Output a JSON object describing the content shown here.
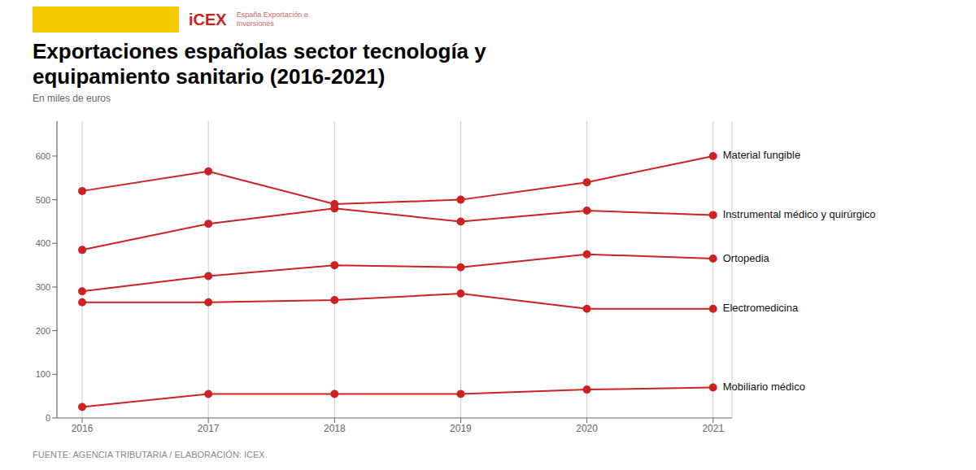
{
  "chart_data": {
    "type": "line",
    "title": "Exportaciones españolas sector tecnología y equipamiento sanitario (2016-2021)",
    "subtitle": "En miles de euros",
    "annotations": [
      "FUENTE: AGENCIA TRIBUTARIA / ELABORACIÓN: ICEX.",
      "iCEX",
      "España Exportación e Inversiones"
    ],
    "x": [
      2016,
      2017,
      2018,
      2019,
      2020,
      2021
    ],
    "xlim": [
      2015.8,
      2021.15
    ],
    "xticks": [
      2016,
      2017,
      2018,
      2019,
      2020,
      2021
    ],
    "ylim": [
      0,
      680
    ],
    "yticks": [
      0,
      100,
      200,
      300,
      400,
      500,
      600
    ],
    "grid": true,
    "series": [
      {
        "name": "Material fungible",
        "color": "#cc2222",
        "values": [
          520,
          565,
          490,
          500,
          540,
          600
        ]
      },
      {
        "name": "Instrumental médico y quirúrgico",
        "color": "#cc2222",
        "values": [
          385,
          445,
          480,
          450,
          475,
          465
        ]
      },
      {
        "name": "Ortopedia",
        "color": "#cc2222",
        "values": [
          290,
          325,
          350,
          345,
          375,
          365
        ]
      },
      {
        "name": "Electromedicina",
        "color": "#cc2222",
        "values": [
          265,
          265,
          270,
          285,
          250,
          250
        ]
      },
      {
        "name": "Mobiliario médico",
        "color": "#cc2222",
        "values": [
          25,
          55,
          55,
          55,
          65,
          70
        ]
      }
    ]
  }
}
